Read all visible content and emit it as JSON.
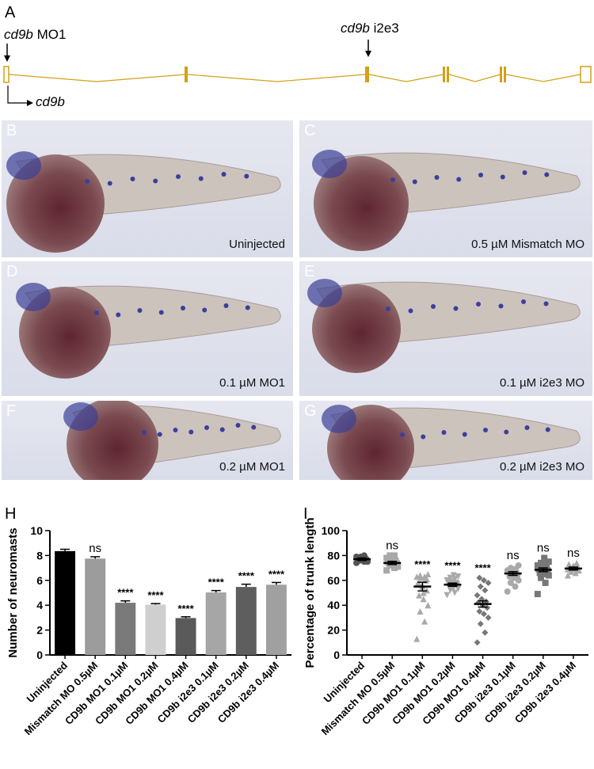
{
  "panel_a": {
    "letter": "A",
    "mo1_label_italic": "cd9b",
    "mo1_label_rest": " MO1",
    "i2e3_label_italic": "cd9b",
    "i2e3_label_rest": " i2e3",
    "gene_label": "cd9b",
    "gene_color": "#d4a017"
  },
  "image_panels": [
    {
      "letter": "B",
      "caption": "Uninjected"
    },
    {
      "letter": "C",
      "caption": "0.5 µM Mismatch MO"
    },
    {
      "letter": "D",
      "caption": "0.1 µM MO1"
    },
    {
      "letter": "E",
      "caption": "0.1 µM i2e3 MO"
    },
    {
      "letter": "F",
      "caption": "0.2 µM MO1"
    },
    {
      "letter": "G",
      "caption": "0.2 µM i2e3 MO"
    }
  ],
  "chart_data": [
    {
      "letter": "H",
      "type": "bar",
      "ylabel": "Number of neuromasts",
      "ylim": [
        0,
        10
      ],
      "yticks": [
        "0",
        "2",
        "4",
        "6",
        "8",
        "10"
      ],
      "categories": [
        "Uninjected",
        "Mismatch MO 0.5µM",
        "CD9b MO1 0.1µM",
        "CD9b MO1 0.2µM",
        "CD9b MO1 0.4µM",
        "CD9b i2e3 0.1µM",
        "CD9b i2e3 0.2µM",
        "CD9b i2e3 0.4µM"
      ],
      "values": [
        8.35,
        7.75,
        4.2,
        4.05,
        2.97,
        5.03,
        5.47,
        5.65
      ],
      "errors": [
        0.15,
        0.15,
        0.15,
        0.08,
        0.1,
        0.15,
        0.22,
        0.18
      ],
      "significance": [
        "",
        "ns",
        "****",
        "****",
        "****",
        "****",
        "****",
        "****"
      ],
      "colors": [
        "#000000",
        "#9c9c9c",
        "#7a7a7a",
        "#cfcfcf",
        "#5a5a5a",
        "#a6a6a6",
        "#5e5e5e",
        "#a0a0a0"
      ]
    },
    {
      "letter": "I",
      "type": "scatter",
      "ylabel": "Percentage of trunk length",
      "ylim": [
        0,
        100
      ],
      "yticks": [
        "0",
        "20",
        "40",
        "60",
        "80",
        "100"
      ],
      "categories": [
        "Uninjected",
        "Mismatch MO 0.5µM",
        "CD9b MO1 0.1µM",
        "CD9b MO1 0.2µM",
        "CD9b MO1 0.4µM",
        "CD9b i2e3 0.1µM",
        "CD9b i2e3 0.2µM",
        "CD9b i2e3 0.4µM"
      ],
      "means": [
        77,
        74,
        55,
        56.5,
        41,
        65.5,
        68.5,
        69.5
      ],
      "sem": [
        1,
        1.3,
        3.5,
        1.3,
        2.5,
        1.5,
        1.5,
        1.2
      ],
      "markers": [
        "circle",
        "square",
        "triangle",
        "invtriangle",
        "diamond",
        "circle",
        "square",
        "triangle"
      ],
      "colors": [
        "#555555",
        "#a9a9a9",
        "#a9a9a9",
        "#a9a9a9",
        "#777777",
        "#a9a9a9",
        "#777777",
        "#a9a9a9"
      ],
      "significance": [
        "",
        "ns",
        "****",
        "****",
        "****",
        "ns",
        "ns",
        "ns"
      ],
      "points": [
        [
          74,
          75,
          76,
          76,
          77,
          77,
          77,
          78,
          78,
          78,
          79,
          79,
          80,
          76,
          75,
          78,
          77
        ],
        [
          68,
          70,
          72,
          72,
          73,
          74,
          74,
          75,
          75,
          76,
          77,
          78,
          80,
          80,
          71,
          73,
          76
        ],
        [
          13,
          27,
          35,
          40,
          45,
          48,
          52,
          55,
          58,
          60,
          62,
          63,
          63,
          64,
          65,
          50,
          57,
          61,
          56
        ],
        [
          48,
          50,
          52,
          53,
          54,
          55,
          56,
          57,
          58,
          58,
          59,
          60,
          61,
          62,
          63,
          64,
          55,
          57
        ],
        [
          10,
          18,
          25,
          30,
          33,
          35,
          38,
          40,
          42,
          43,
          45,
          48,
          52,
          55,
          58,
          60,
          62
        ],
        [
          51,
          55,
          58,
          60,
          62,
          63,
          64,
          65,
          66,
          67,
          67,
          68,
          69,
          70,
          72,
          65,
          66
        ],
        [
          49,
          58,
          62,
          64,
          65,
          66,
          67,
          68,
          69,
          70,
          71,
          72,
          73,
          74,
          75,
          78,
          70,
          68
        ],
        [
          64,
          66,
          67,
          68,
          69,
          70,
          71,
          72,
          73,
          74,
          70,
          69
        ]
      ]
    }
  ]
}
